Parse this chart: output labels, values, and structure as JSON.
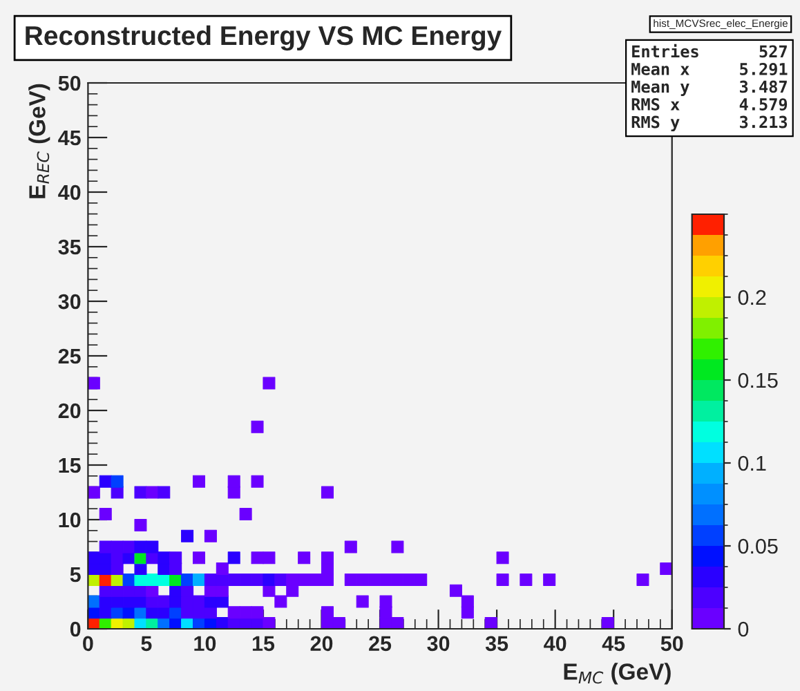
{
  "chart_data": {
    "type": "scatter",
    "marker": "square",
    "title": "Reconstructed Energy VS MC Energy",
    "xlabel": "E$_{MC}$ (GeV)",
    "ylabel": "E$_{REC}$ (GeV)",
    "xlim": [
      0,
      50
    ],
    "ylim": [
      0,
      50
    ],
    "xticks": [
      0,
      5,
      10,
      15,
      20,
      25,
      30,
      35,
      40,
      45,
      50
    ],
    "yticks": [
      0,
      5,
      10,
      15,
      20,
      25,
      30,
      35,
      40,
      45,
      50
    ],
    "clim": [
      0,
      0.25
    ],
    "cticks": [
      0,
      0.05,
      0.1,
      0.15,
      0.2
    ],
    "annotations": [
      "hist_MCVSrec_elec_Energie",
      "Entries      527",
      "Mean x     5.291",
      "Mean y     3.487",
      "RMS x      4.579",
      "RMS y      3.213"
    ],
    "series": [
      {
        "x": [
          0.5,
          1.5,
          2.5,
          3.5,
          4.5,
          5.5,
          6.5,
          7.5,
          8.5,
          9.5,
          10.5,
          11.5,
          12.5,
          13.5,
          14.5,
          15.5,
          20.5,
          21.5,
          25.5,
          26.5,
          34.5,
          44.5
        ],
        "values": [
          0.5,
          0.5,
          0.5,
          0.5,
          0.5,
          0.5,
          0.5,
          0.5,
          0.5,
          0.5,
          0.5,
          0.5,
          0.5,
          0.5,
          0.5,
          0.5,
          0.5,
          0.5,
          0.5,
          0.5,
          0.5,
          0.5
        ],
        "cvalues": [
          0.24,
          0.17,
          0.21,
          0.19,
          0.1,
          0.13,
          0.07,
          0.04,
          0.1,
          0.06,
          0.04,
          0.03,
          0.015,
          0.015,
          0.015,
          0.005,
          0.005,
          0.005,
          0.005,
          0.005,
          0.005,
          0.005
        ],
        "colors": [
          "#ff2000",
          "#30f000",
          "#f0f000",
          "#c0f000",
          "#00e0ff",
          "#00f0a0",
          "#0070ff",
          "#0010ff",
          "#00e0ff",
          "#0040ff",
          "#0010ff",
          "#2a00ff",
          "#4c00ff",
          "#4c00ff",
          "#4c00ff",
          "#6a00ff",
          "#6a00ff",
          "#6a00ff",
          "#6a00ff",
          "#6a00ff",
          "#6a00ff",
          "#6a00ff"
        ]
      },
      {
        "x": [
          0.5,
          1.5,
          2.5,
          3.5,
          4.5,
          5.5,
          6.5,
          7.5,
          8.5,
          9.5,
          10.5,
          12.5,
          13.5,
          14.5,
          20.5,
          25.5,
          32.5
        ],
        "values": [
          1.5,
          1.5,
          1.5,
          1.5,
          1.5,
          1.5,
          1.5,
          1.5,
          1.5,
          1.5,
          1.5,
          1.5,
          1.5,
          1.5,
          1.5,
          1.5,
          1.5
        ],
        "cvalues": [
          0.04,
          0.03,
          0.06,
          0.04,
          0.07,
          0.03,
          0.03,
          0.06,
          0.015,
          0.015,
          0.015,
          0.005,
          0.005,
          0.005,
          0.005,
          0.005,
          0.005
        ],
        "colors": [
          "#0010ff",
          "#2a00ff",
          "#0040ff",
          "#0010ff",
          "#0070ff",
          "#2a00ff",
          "#2a00ff",
          "#0040ff",
          "#4c00ff",
          "#4c00ff",
          "#4c00ff",
          "#6a00ff",
          "#6a00ff",
          "#6a00ff",
          "#6a00ff",
          "#6a00ff",
          "#6a00ff"
        ]
      },
      {
        "x": [
          0.5,
          1.5,
          2.5,
          3.5,
          4.5,
          5.5,
          6.5,
          7.5,
          8.5,
          9.5,
          10.5,
          11.5,
          16.5,
          23.5,
          25.5,
          32.5
        ],
        "values": [
          2.5,
          2.5,
          2.5,
          2.5,
          2.5,
          2.5,
          2.5,
          2.5,
          2.5,
          2.5,
          2.5,
          2.5,
          2.5,
          2.5,
          2.5,
          2.5
        ],
        "cvalues": [
          0.07,
          0.03,
          0.03,
          0.03,
          0.03,
          0.015,
          0.015,
          0.03,
          0.015,
          0.015,
          0.03,
          0.03,
          0.005,
          0.005,
          0.005,
          0.005
        ],
        "colors": [
          "#0070ff",
          "#2a00ff",
          "#2a00ff",
          "#2a00ff",
          "#2a00ff",
          "#4c00ff",
          "#4c00ff",
          "#2a00ff",
          "#4c00ff",
          "#4c00ff",
          "#2a00ff",
          "#2a00ff",
          "#6a00ff",
          "#6a00ff",
          "#6a00ff",
          "#6a00ff"
        ]
      },
      {
        "x": [
          1.5,
          2.5,
          3.5,
          4.5,
          5.5,
          7.5,
          8.5,
          10.5,
          11.5,
          15.5,
          17.5,
          31.5
        ],
        "values": [
          3.5,
          3.5,
          3.5,
          3.5,
          3.5,
          3.5,
          3.5,
          3.5,
          3.5,
          3.5,
          3.5,
          3.5
        ],
        "cvalues": [
          0.015,
          0.015,
          0.015,
          0.015,
          0.005,
          0.03,
          0.015,
          0.005,
          0.005,
          0.005,
          0.005,
          0.005
        ],
        "colors": [
          "#4c00ff",
          "#4c00ff",
          "#4c00ff",
          "#4c00ff",
          "#6a00ff",
          "#2a00ff",
          "#4c00ff",
          "#6a00ff",
          "#6a00ff",
          "#6a00ff",
          "#6a00ff",
          "#6a00ff"
        ]
      },
      {
        "x": [
          0.5,
          1.5,
          2.5,
          3.5,
          4.5,
          5.5,
          6.5,
          7.5,
          8.5,
          9.5,
          10.5,
          11.5,
          12.5,
          13.5,
          14.5,
          15.5,
          16.5,
          17.5,
          18.5,
          19.5,
          20.5,
          22.5,
          23.5,
          24.5,
          25.5,
          26.5,
          27.5,
          28.5,
          35.5,
          37.5,
          39.5,
          47.5
        ],
        "values": [
          4.5,
          4.5,
          4.5,
          4.5,
          4.5,
          4.5,
          4.5,
          4.5,
          4.5,
          4.5,
          4.5,
          4.5,
          4.5,
          4.5,
          4.5,
          4.5,
          4.5,
          4.5,
          4.5,
          4.5,
          4.5,
          4.5,
          4.5,
          4.5,
          4.5,
          4.5,
          4.5,
          4.5,
          4.5,
          4.5,
          4.5,
          4.5
        ],
        "cvalues": [
          0.19,
          0.24,
          0.19,
          0.05,
          0.12,
          0.12,
          0.12,
          0.16,
          0.06,
          0.09,
          0.02,
          0.02,
          0.02,
          0.02,
          0.02,
          0.03,
          0.02,
          0.005,
          0.005,
          0.005,
          0.005,
          0.005,
          0.005,
          0.005,
          0.005,
          0.005,
          0.005,
          0.005,
          0.005,
          0.005,
          0.005,
          0.005
        ],
        "colors": [
          "#c0f000",
          "#ff2000",
          "#c0f000",
          "#0040ff",
          "#00ffe0",
          "#00ffe0",
          "#00ffe0",
          "#00e820",
          "#0040ff",
          "#00b0ff",
          "#4c00ff",
          "#4c00ff",
          "#4c00ff",
          "#4c00ff",
          "#4c00ff",
          "#2a00ff",
          "#4c00ff",
          "#6a00ff",
          "#6a00ff",
          "#6a00ff",
          "#6a00ff",
          "#6a00ff",
          "#6a00ff",
          "#6a00ff",
          "#6a00ff",
          "#6a00ff",
          "#6a00ff",
          "#6a00ff",
          "#6a00ff",
          "#6a00ff",
          "#6a00ff",
          "#6a00ff"
        ]
      },
      {
        "x": [
          0.5,
          1.5,
          2.5,
          4.5,
          6.5,
          7.5,
          11.5,
          20.5,
          49.5
        ],
        "values": [
          5.5,
          5.5,
          5.5,
          5.5,
          5.5,
          5.5,
          5.5,
          5.5,
          5.5
        ],
        "cvalues": [
          0.03,
          0.03,
          0.015,
          0.03,
          0.03,
          0.015,
          0.005,
          0.005,
          0.005
        ],
        "colors": [
          "#2a00ff",
          "#2a00ff",
          "#4c00ff",
          "#2a00ff",
          "#2a00ff",
          "#4c00ff",
          "#6a00ff",
          "#6a00ff",
          "#6a00ff"
        ]
      },
      {
        "x": [
          0.5,
          1.5,
          2.5,
          3.5,
          4.5,
          5.5,
          6.5,
          7.5,
          9.5,
          12.5,
          14.5,
          15.5,
          18.5,
          20.5,
          35.5
        ],
        "values": [
          6.5,
          6.5,
          6.5,
          6.5,
          6.5,
          6.5,
          6.5,
          6.5,
          6.5,
          6.5,
          6.5,
          6.5,
          6.5,
          6.5,
          6.5
        ],
        "cvalues": [
          0.03,
          0.03,
          0.015,
          0.03,
          0.15,
          0.015,
          0.03,
          0.015,
          0.005,
          0.03,
          0.005,
          0.005,
          0.005,
          0.005,
          0.005
        ],
        "colors": [
          "#2a00ff",
          "#2a00ff",
          "#4c00ff",
          "#2a00ff",
          "#00e820",
          "#4c00ff",
          "#2a00ff",
          "#4c00ff",
          "#6a00ff",
          "#2a00ff",
          "#6a00ff",
          "#6a00ff",
          "#6a00ff",
          "#6a00ff",
          "#6a00ff"
        ]
      },
      {
        "x": [
          1.5,
          2.5,
          3.5,
          4.5,
          5.5,
          22.5,
          26.5
        ],
        "values": [
          7.5,
          7.5,
          7.5,
          7.5,
          7.5,
          7.5,
          7.5
        ],
        "cvalues": [
          0.015,
          0.015,
          0.015,
          0.03,
          0.03,
          0.005,
          0.005
        ],
        "colors": [
          "#4c00ff",
          "#4c00ff",
          "#4c00ff",
          "#2a00ff",
          "#2a00ff",
          "#6a00ff",
          "#6a00ff"
        ]
      },
      {
        "x": [
          8.5,
          10.5
        ],
        "values": [
          8.5,
          8.5
        ],
        "cvalues": [
          0.03,
          0.005
        ],
        "colors": [
          "#2a00ff",
          "#6a00ff"
        ]
      },
      {
        "x": [
          4.5
        ],
        "values": [
          9.5
        ],
        "cvalues": [
          0.005
        ],
        "colors": [
          "#6a00ff"
        ]
      },
      {
        "x": [
          1.5,
          13.5
        ],
        "values": [
          10.5,
          10.5
        ],
        "cvalues": [
          0.005,
          0.005
        ],
        "colors": [
          "#6a00ff",
          "#6a00ff"
        ]
      },
      {
        "x": [
          0.5,
          2.5,
          4.5,
          5.5,
          6.5,
          12.5,
          20.5
        ],
        "values": [
          12.5,
          12.5,
          12.5,
          12.5,
          12.5,
          12.5,
          12.5
        ],
        "cvalues": [
          0.005,
          0.015,
          0.015,
          0.005,
          0.015,
          0.005,
          0.005
        ],
        "colors": [
          "#6a00ff",
          "#4c00ff",
          "#4c00ff",
          "#6a00ff",
          "#4c00ff",
          "#6a00ff",
          "#6a00ff"
        ]
      },
      {
        "x": [
          1.5,
          2.5,
          9.5,
          12.5,
          14.5
        ],
        "values": [
          13.5,
          13.5,
          13.5,
          13.5,
          13.5
        ],
        "cvalues": [
          0.03,
          0.06,
          0.005,
          0.005,
          0.005
        ],
        "colors": [
          "#2a00ff",
          "#0040ff",
          "#6a00ff",
          "#6a00ff",
          "#6a00ff"
        ]
      },
      {
        "x": [
          14.5
        ],
        "values": [
          18.5
        ],
        "cvalues": [
          0.005
        ],
        "colors": [
          "#6a00ff"
        ]
      },
      {
        "x": [
          0.5,
          15.5
        ],
        "values": [
          22.5,
          22.5
        ],
        "cvalues": [
          0.005,
          0.005
        ],
        "colors": [
          "#6a00ff",
          "#6a00ff"
        ]
      }
    ]
  }
}
